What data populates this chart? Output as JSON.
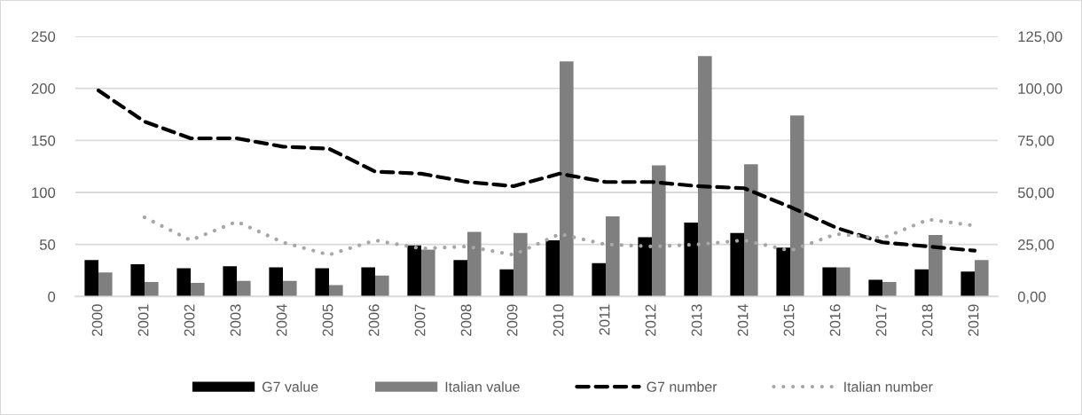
{
  "chart_data": {
    "type": "bar",
    "categories": [
      "2000",
      "2001",
      "2002",
      "2003",
      "2004",
      "2005",
      "2006",
      "2007",
      "2008",
      "2009",
      "2010",
      "2011",
      "2012",
      "2013",
      "2014",
      "2015",
      "2016",
      "2017",
      "2018",
      "2019"
    ],
    "series": [
      {
        "name": "G7 value",
        "color": "#000000",
        "values": [
          35,
          31,
          27,
          29,
          28,
          27,
          28,
          49,
          35,
          26,
          54,
          32,
          57,
          71,
          61,
          47,
          28,
          16,
          26,
          24
        ]
      },
      {
        "name": "Italian value",
        "color": "#7f7f7f",
        "values": [
          23,
          14,
          13,
          15,
          15,
          11,
          20,
          45,
          62,
          61,
          226,
          77,
          126,
          231,
          127,
          174,
          28,
          14,
          59,
          35
        ]
      },
      {
        "name": "G7 number",
        "type": "line",
        "axis": "y2",
        "color": "#000000",
        "line_style": "dashed",
        "values": [
          99,
          84,
          76,
          76,
          72,
          71,
          60,
          59,
          55,
          53,
          59,
          55,
          55,
          53,
          52,
          43,
          33,
          26,
          24,
          22
        ]
      },
      {
        "name": "Italian number",
        "type": "line",
        "axis": "y2",
        "color": "#a6a6a6",
        "line_style": "dotted",
        "values": [
          null,
          38,
          27,
          36,
          26,
          20,
          27,
          23,
          24,
          20,
          30,
          25,
          24,
          25,
          27,
          22,
          30,
          28,
          37,
          34
        ]
      }
    ],
    "ylim": [
      0,
      250
    ],
    "yticks": [
      0,
      50,
      100,
      150,
      200,
      250
    ],
    "y2lim": [
      0,
      125
    ],
    "y2ticks": [
      {
        "value": 0,
        "label": "0,00"
      },
      {
        "value": 25,
        "label": "25,00"
      },
      {
        "value": 50,
        "label": "50,00"
      },
      {
        "value": 75,
        "label": "75,00"
      },
      {
        "value": 100,
        "label": "100,00"
      },
      {
        "value": 125,
        "label": "125,00"
      }
    ],
    "grid": "y",
    "legend": "bottom"
  }
}
